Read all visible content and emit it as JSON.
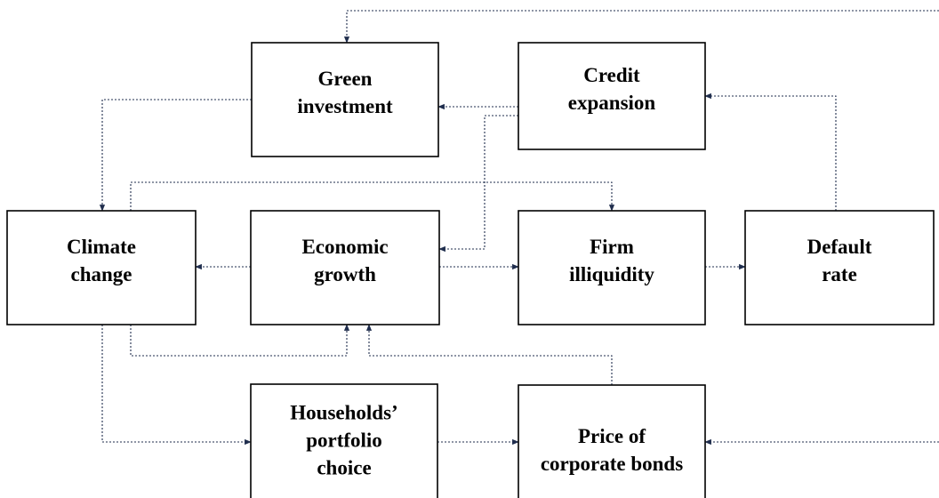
{
  "nodes": [
    {
      "id": "green",
      "lines": [
        "Green",
        "investment"
      ]
    },
    {
      "id": "credit",
      "lines": [
        "Credit",
        "expansion"
      ]
    },
    {
      "id": "climate",
      "lines": [
        "Climate",
        "change"
      ]
    },
    {
      "id": "growth",
      "lines": [
        "Economic",
        "growth"
      ]
    },
    {
      "id": "firm",
      "lines": [
        "Firm",
        "illiquidity"
      ]
    },
    {
      "id": "default",
      "lines": [
        "Default",
        "rate"
      ]
    },
    {
      "id": "households",
      "lines": [
        "Households’",
        "portfolio",
        "choice"
      ]
    },
    {
      "id": "bonds",
      "lines": [
        "Price of",
        "corporate bonds"
      ]
    }
  ]
}
